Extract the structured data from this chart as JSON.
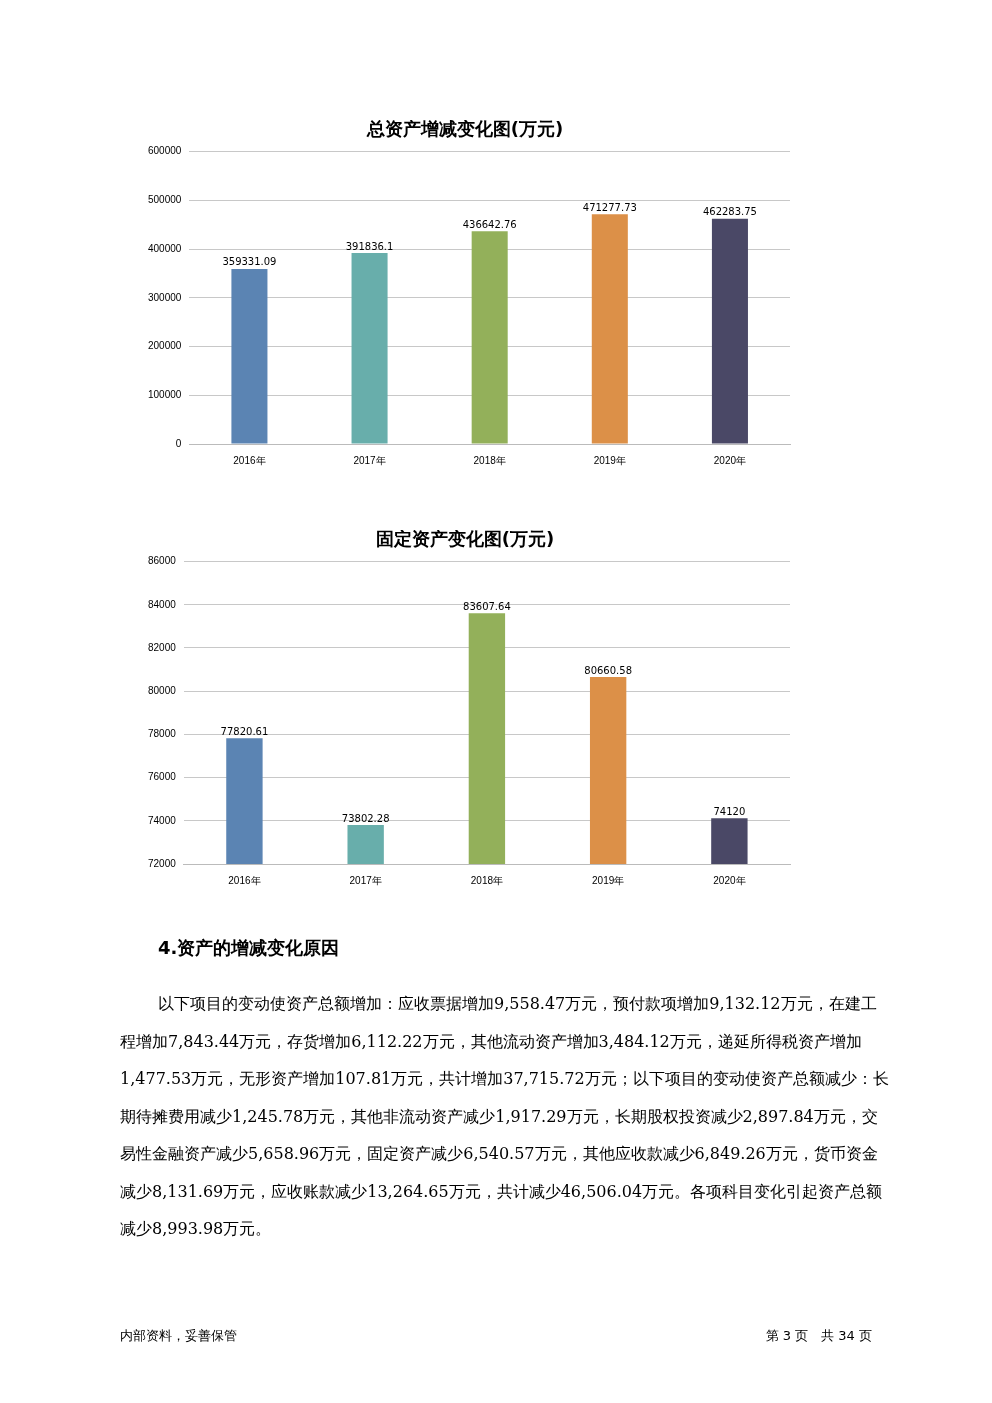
{
  "chart_data": [
    {
      "type": "bar",
      "title": "总资产增减变化图(万元)",
      "categories": [
        "2016年",
        "2017年",
        "2018年",
        "2019年",
        "2020年"
      ],
      "values": [
        359331.09,
        391836.1,
        436642.76,
        471277.73,
        462283.75
      ],
      "colors": [
        "#5b84b3",
        "#68aeab",
        "#93b05a",
        "#dc9048",
        "#4a4866"
      ],
      "ylim": [
        0,
        600000
      ],
      "yticks": [
        0,
        100000,
        200000,
        300000,
        400000,
        500000,
        600000
      ],
      "grid": "y",
      "legend": false,
      "data_labels": true
    },
    {
      "type": "bar",
      "title": "固定资产变化图(万元)",
      "categories": [
        "2016年",
        "2017年",
        "2018年",
        "2019年",
        "2020年"
      ],
      "values": [
        77820.61,
        73802.28,
        83607.64,
        80660.58,
        74120
      ],
      "colors": [
        "#5b84b3",
        "#68aeab",
        "#93b05a",
        "#dc9048",
        "#4a4866"
      ],
      "ylim": [
        72000,
        86000
      ],
      "yticks": [
        72000,
        74000,
        76000,
        78000,
        80000,
        82000,
        84000,
        86000
      ],
      "grid": "y",
      "legend": false,
      "data_labels": true,
      "annotations": [
        "4.资产的增减变化原因",
        "以下项目的变动使资产总额增加：应收票据增加9,558.47万元，预付款项增加9,132.12万元，在建工程增加7,843.44万元，存货增加6,112.22万元，其他流动资产增加3,484.12万元，递延所得税资产增加1,477.53万元，无形资产增加107.81万元，共计增加37,715.72万元；以下项目的变动使资产总额减少：长期待摊费用减少1,245.78万元，其他非流动资产减少1,917.29万元，长期股权投资减少2,897.84万元，交易性金融资产减少5,658.96万元，固定资产减少6,540.57万元，其他应收款减少6,849.26万元，货币资金减少8,131.69万元，应收账款减少13,264.65万元，共计减少46,506.04万元。各项科目变化引起资产总额减少8,993.98万元。",
        "内部资料，妥善保管",
        "第 3 页　共 34 页"
      ]
    }
  ]
}
